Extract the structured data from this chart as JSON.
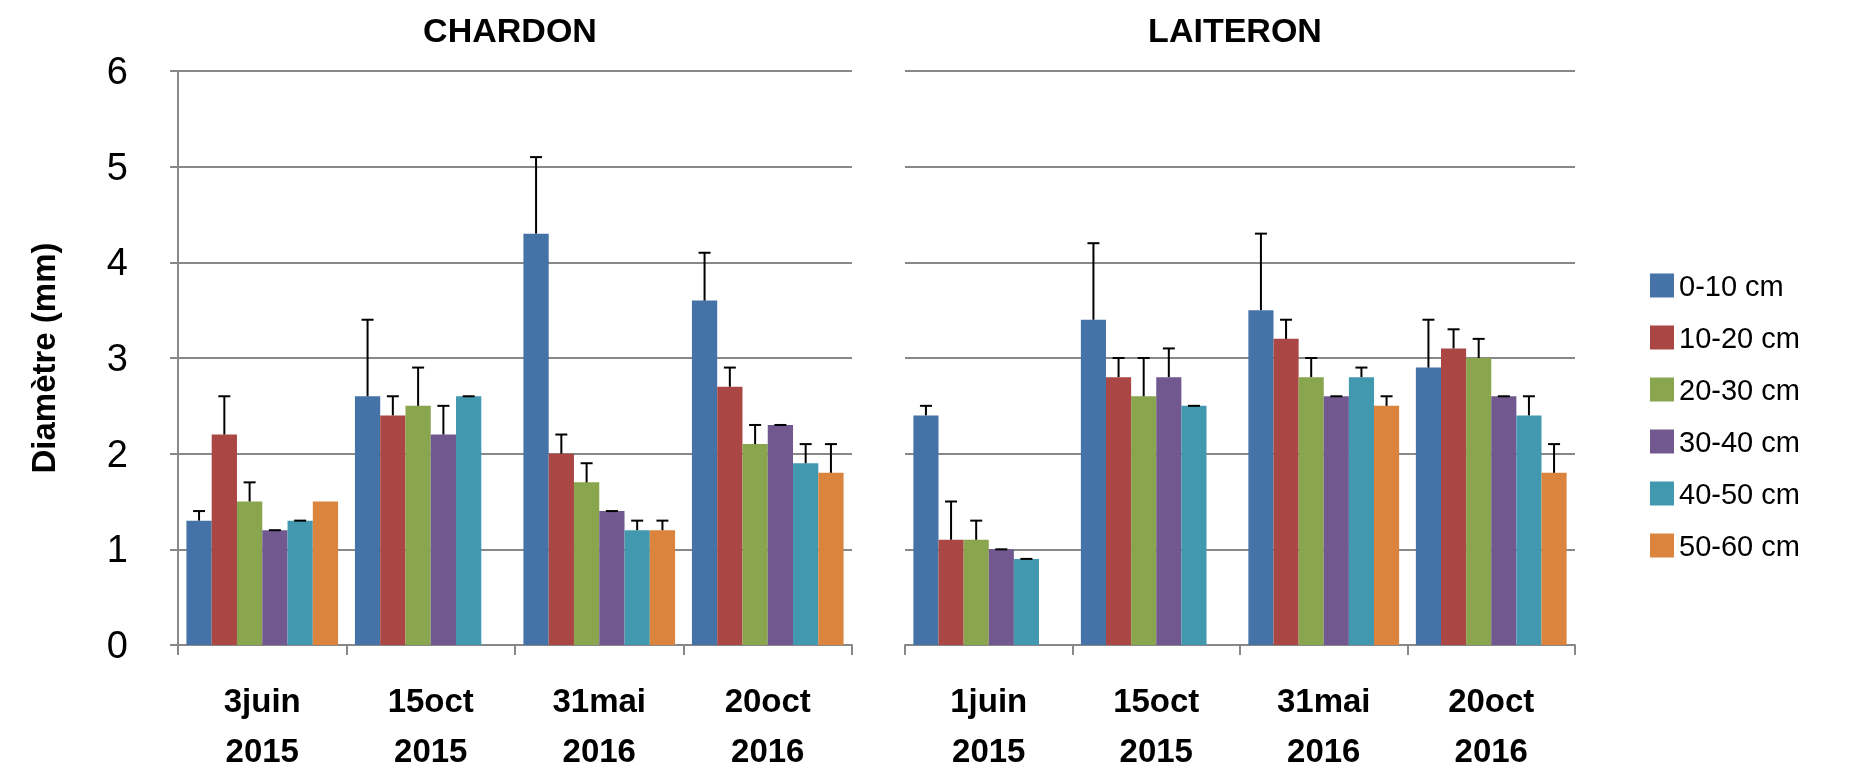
{
  "chart_data": [
    {
      "type": "bar",
      "title": "CHARDON",
      "ylabel": "Diamètre (mm)",
      "categories": [
        "3juin\n2015",
        "15oct\n2015",
        "31mai\n2016",
        "20oct\n2016"
      ],
      "ylim": [
        0,
        6
      ],
      "yticks": [
        0,
        1,
        2,
        3,
        4,
        5,
        6
      ],
      "grid": "y",
      "legend": false,
      "series": [
        {
          "color": "#4572a7",
          "values": [
            1.3,
            2.6,
            4.3,
            3.6
          ],
          "errors": [
            [
              1.3,
              1.4
            ],
            [
              2.6,
              3.4
            ],
            [
              4.3,
              5.1
            ],
            [
              3.6,
              4.1
            ]
          ]
        },
        {
          "color": "#aa4643",
          "values": [
            2.2,
            2.4,
            2.0,
            2.7
          ],
          "errors": [
            [
              2.2,
              2.6
            ],
            [
              2.4,
              2.6
            ],
            [
              2.0,
              2.2
            ],
            [
              2.7,
              2.9
            ]
          ]
        },
        {
          "color": "#89a54e",
          "values": [
            1.5,
            2.5,
            1.7,
            2.1
          ],
          "errors": [
            [
              1.5,
              1.7
            ],
            [
              2.5,
              2.9
            ],
            [
              1.7,
              1.9
            ],
            [
              2.1,
              2.3
            ]
          ]
        },
        {
          "color": "#71588f",
          "values": [
            1.2,
            2.2,
            1.4,
            2.3
          ],
          "errors": [
            [
              1.2,
              1.2
            ],
            [
              2.2,
              2.5
            ],
            [
              1.4,
              1.4
            ],
            [
              2.3,
              2.3
            ]
          ]
        },
        {
          "color": "#4198af",
          "values": [
            1.3,
            2.6,
            1.2,
            1.9
          ],
          "errors": [
            [
              1.3,
              1.3
            ],
            [
              2.6,
              2.6
            ],
            [
              1.2,
              1.3
            ],
            [
              1.9,
              2.1
            ]
          ]
        },
        {
          "color": "#db843d",
          "values": [
            1.5,
            null,
            1.2,
            1.8
          ],
          "errors": [
            null,
            null,
            [
              1.2,
              1.3
            ],
            [
              1.8,
              2.1
            ]
          ]
        }
      ]
    },
    {
      "type": "bar",
      "title": "LAITERON",
      "categories": [
        "1juin\n2015",
        "15oct\n2015",
        "31mai\n2016",
        "20oct\n2016"
      ],
      "ylim": [
        0,
        6
      ],
      "yticks": [
        0,
        1,
        2,
        3,
        4,
        5,
        6
      ],
      "grid": "y",
      "legend": "right",
      "tick_labels": "x",
      "series": [
        {
          "name": "0-10 cm",
          "color": "#4572a7",
          "values": [
            2.4,
            3.4,
            3.5,
            2.9
          ],
          "errors": [
            [
              2.4,
              2.5
            ],
            [
              3.4,
              4.2
            ],
            [
              3.5,
              4.3
            ],
            [
              2.9,
              3.4
            ]
          ]
        },
        {
          "name": "10-20 cm",
          "color": "#aa4643",
          "values": [
            1.1,
            2.8,
            3.2,
            3.1
          ],
          "errors": [
            [
              1.1,
              1.5
            ],
            [
              2.8,
              3.0
            ],
            [
              3.2,
              3.4
            ],
            [
              3.1,
              3.3
            ]
          ]
        },
        {
          "name": "20-30 cm",
          "color": "#89a54e",
          "values": [
            1.1,
            2.6,
            2.8,
            3.0
          ],
          "errors": [
            [
              1.1,
              1.3
            ],
            [
              2.6,
              3.0
            ],
            [
              2.8,
              3.0
            ],
            [
              3.0,
              3.2
            ]
          ]
        },
        {
          "name": "30-40 cm",
          "color": "#71588f",
          "values": [
            1.0,
            2.8,
            2.6,
            2.6
          ],
          "errors": [
            [
              1.0,
              1.0
            ],
            [
              2.8,
              3.1
            ],
            [
              2.6,
              2.6
            ],
            [
              2.6,
              2.6
            ]
          ]
        },
        {
          "name": "40-50 cm",
          "color": "#4198af",
          "values": [
            0.9,
            2.5,
            2.8,
            2.4
          ],
          "errors": [
            [
              0.9,
              0.9
            ],
            [
              2.5,
              2.5
            ],
            [
              2.8,
              2.9
            ],
            [
              2.4,
              2.6
            ]
          ]
        },
        {
          "name": "50-60 cm",
          "color": "#db843d",
          "values": [
            null,
            null,
            2.5,
            1.8
          ],
          "errors": [
            null,
            null,
            [
              2.5,
              2.6
            ],
            [
              1.8,
              2.1
            ]
          ]
        }
      ]
    }
  ]
}
